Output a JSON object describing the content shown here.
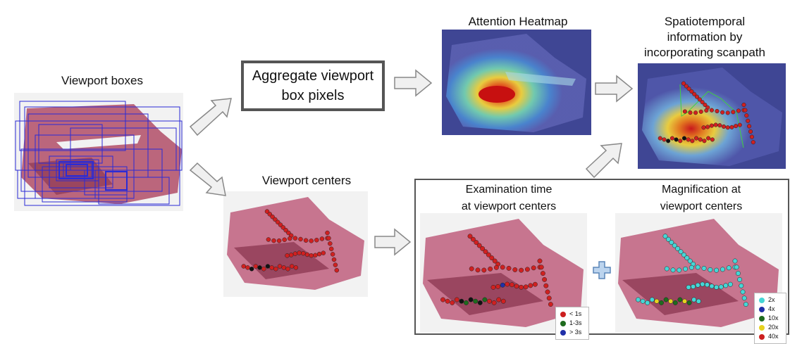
{
  "labels": {
    "viewport_boxes": "Viewport boxes",
    "viewport_centers": "Viewport centers",
    "aggregate_line1": "Aggregate viewport",
    "aggregate_line2": "box pixels",
    "attention_heatmap": "Attention Heatmap",
    "spatiotemporal_line1": "Spatiotemporal",
    "spatiotemporal_line2": "information by",
    "spatiotemporal_line3": "incorporating scanpath",
    "exam_time_line1": "Examination time",
    "exam_time_line2": "at viewport centers",
    "magnification_line1": "Magnification at",
    "magnification_line2": "viewport centers"
  },
  "time_legend": [
    {
      "label": "< 1s",
      "color": "#cc1f1f"
    },
    {
      "label": "1-3s",
      "color": "#1e6b1e"
    },
    {
      "label": "> 3s",
      "color": "#1f2fa8"
    }
  ],
  "mag_legend": [
    {
      "label": "2x",
      "color": "#46d6d6"
    },
    {
      "label": "4x",
      "color": "#1f2fa8"
    },
    {
      "label": "10x",
      "color": "#1e6b1e"
    },
    {
      "label": "20x",
      "color": "#e6d21f"
    },
    {
      "label": "40x",
      "color": "#cc1f1f"
    }
  ],
  "colors": {
    "arrow_fill": "#f0f0f0",
    "arrow_stroke": "#888888",
    "tissue": "#b5576f",
    "tissue_light": "#d8a2b4",
    "box_blue": "#2b2bd6",
    "plus_fill": "#bcd4ee",
    "plus_stroke": "#5b86b8"
  }
}
